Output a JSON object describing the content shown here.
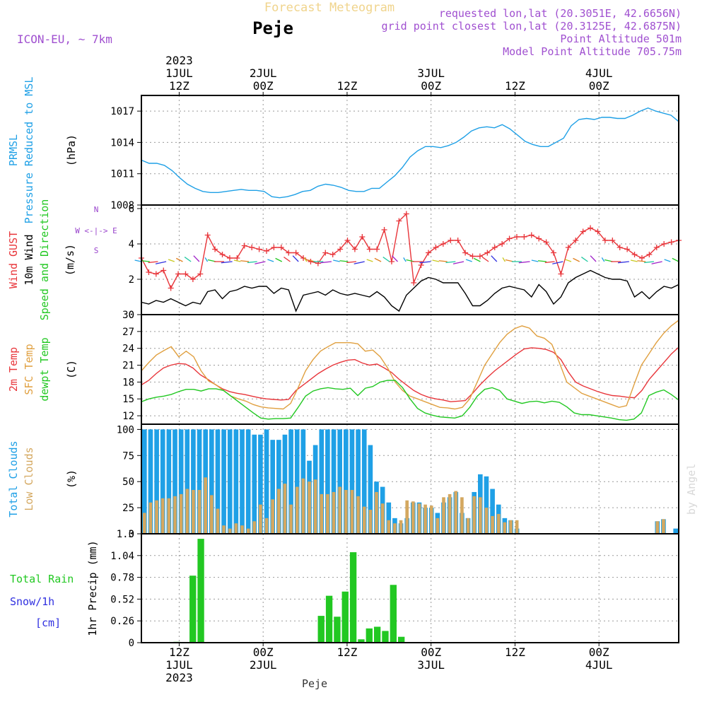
{
  "header": {
    "title": "Forecast Meteogram",
    "location": "Peje",
    "model": "ICON-EU, ~ 7km",
    "requested": "requested lon,lat (20.3051E, 42.6656N)",
    "grid_point": "grid point closest lon,lat (20.3125E, 42.6875N)",
    "point_altitude": "Point Altitude 501m",
    "model_altitude": "Model Point Altitude 705.75m",
    "footer_location": "Peje",
    "watermark": "by Angel"
  },
  "colors": {
    "pressure": "#1fa0e6",
    "gust": "#e8353a",
    "wind": "#000000",
    "temp2m": "#e8353a",
    "sfc": "#e0a040",
    "dewpt": "#22c822",
    "total_clouds": "#1fa0e6",
    "low_clouds": "#d4a860",
    "rain": "#22c822",
    "snow": "#3030e0",
    "compass": "#9944cc"
  },
  "time_axis": {
    "top_labels": [
      {
        "lines": [
          "2023",
          "1JUL",
          "12Z"
        ]
      },
      {
        "lines": [
          "2JUL",
          "00Z"
        ]
      },
      {
        "lines": [
          "12Z"
        ]
      },
      {
        "lines": [
          "3JUL",
          "00Z"
        ]
      },
      {
        "lines": [
          "12Z"
        ]
      },
      {
        "lines": [
          "4JUL",
          "00Z"
        ]
      }
    ],
    "bottom_labels": [
      {
        "lines": [
          "12Z",
          "1JUL",
          "2023"
        ]
      },
      {
        "lines": [
          "00Z",
          "2JUL"
        ]
      },
      {
        "lines": [
          "12Z"
        ]
      },
      {
        "lines": [
          "00Z",
          "3JUL"
        ]
      },
      {
        "lines": [
          "12Z"
        ]
      },
      {
        "lines": [
          "00Z",
          "4JUL"
        ]
      }
    ]
  },
  "panels": {
    "pressure": {
      "left_labels": [
        "PRMSL",
        "Pressure Reduced to MSL"
      ],
      "unit": "(hPa)"
    },
    "wind": {
      "left_labels": [
        "Wind GUST",
        "10m Wind",
        "Speed and Direction"
      ],
      "unit": "(m/s)",
      "compass": [
        "N",
        "W <-|-> E",
        "S"
      ]
    },
    "temp": {
      "left_labels": [
        "2m Temp",
        "SFC Temp",
        "dewpt Temp"
      ],
      "unit": "(C)"
    },
    "clouds": {
      "left_labels": [
        "Total Clouds",
        "Low Clouds"
      ],
      "unit": "(%)"
    },
    "precip": {
      "left_labels": [
        "Total  Rain",
        "Snow/1h",
        "[cm]"
      ],
      "unit": "1hr Precip (mm)"
    }
  },
  "chart_data": [
    {
      "type": "line",
      "name": "pressure",
      "x_range": [
        0,
        64
      ],
      "ylim": [
        1008,
        1018.5
      ],
      "yticks": [
        1008,
        1011,
        1014,
        1017
      ],
      "y_tick_labels": [
        "1008",
        "1011",
        "1014",
        "1017"
      ],
      "series": [
        {
          "values": [
            1012.3,
            1012.0,
            1012.0,
            1011.8,
            1011.3,
            1010.6,
            1010.0,
            1009.6,
            1009.3,
            1009.2,
            1009.2,
            1009.3,
            1009.4,
            1009.5,
            1009.4,
            1009.4,
            1009.3,
            1008.8,
            1008.7,
            1008.8,
            1009.0,
            1009.3,
            1009.4,
            1009.8,
            1010.0,
            1009.9,
            1009.7,
            1009.4,
            1009.3,
            1009.3,
            1009.6,
            1009.6,
            1010.2,
            1010.8,
            1011.6,
            1012.6,
            1013.2,
            1013.6,
            1013.6,
            1013.5,
            1013.7,
            1014.0,
            1014.5,
            1015.1,
            1015.4,
            1015.5,
            1015.4,
            1015.7,
            1015.3,
            1014.7,
            1014.1,
            1013.8,
            1013.6,
            1013.6,
            1014.0,
            1014.4,
            1015.6,
            1016.2,
            1016.3,
            1016.2,
            1016.4,
            1016.4,
            1016.3,
            1016.3,
            1016.6,
            1017.0,
            1017.3,
            1017.0,
            1016.8,
            1016.6,
            1016.0
          ]
        }
      ]
    },
    {
      "type": "line",
      "name": "wind",
      "x_range": [
        0,
        64
      ],
      "ylim": [
        0,
        6.2
      ],
      "yticks": [
        0,
        2,
        4,
        6
      ],
      "y_tick_labels": [
        "0",
        "2",
        "4",
        "6"
      ],
      "series": [
        {
          "name": "Wind GUST",
          "values": [
            3.2,
            2.4,
            2.3,
            2.5,
            1.5,
            2.3,
            2.3,
            2.0,
            2.3,
            4.5,
            3.7,
            3.4,
            3.2,
            3.2,
            3.9,
            3.8,
            3.7,
            3.6,
            3.8,
            3.8,
            3.5,
            3.5,
            3.2,
            3.0,
            2.9,
            3.5,
            3.4,
            3.7,
            4.2,
            3.7,
            4.4,
            3.7,
            3.7,
            4.8,
            3.0,
            5.3,
            5.7,
            1.8,
            2.8,
            3.5,
            3.8,
            4.0,
            4.2,
            4.2,
            3.5,
            3.3,
            3.3,
            3.5,
            3.8,
            4.0,
            4.3,
            4.4,
            4.4,
            4.5,
            4.3,
            4.1,
            3.5,
            2.3,
            3.8,
            4.2,
            4.7,
            4.9,
            4.7,
            4.2,
            4.2,
            3.8,
            3.7,
            3.4,
            3.2,
            3.4,
            3.8,
            4.0,
            4.1,
            4.2
          ]
        },
        {
          "name": "10m Wind",
          "values": [
            0.7,
            0.6,
            0.8,
            0.7,
            0.9,
            0.7,
            0.5,
            0.7,
            0.6,
            1.3,
            1.4,
            0.9,
            1.3,
            1.4,
            1.6,
            1.5,
            1.6,
            1.6,
            1.2,
            1.5,
            1.4,
            0.2,
            1.1,
            1.2,
            1.3,
            1.1,
            1.4,
            1.2,
            1.1,
            1.2,
            1.1,
            1.0,
            1.3,
            1.0,
            0.5,
            0.2,
            1.1,
            1.5,
            1.9,
            2.1,
            2.0,
            1.8,
            1.8,
            1.8,
            1.2,
            0.5,
            0.5,
            0.8,
            1.2,
            1.5,
            1.6,
            1.5,
            1.4,
            1.0,
            1.7,
            1.3,
            0.6,
            1.0,
            1.8,
            2.1,
            2.3,
            2.5,
            2.3,
            2.1,
            2.0,
            2.0,
            1.9,
            1.0,
            1.3,
            0.9,
            1.3,
            1.6,
            1.5,
            1.7
          ]
        }
      ],
      "wind_vector_y": 3.0
    },
    {
      "type": "line",
      "name": "temperature",
      "x_range": [
        0,
        64
      ],
      "ylim": [
        10.5,
        30
      ],
      "yticks": [
        12,
        15,
        18,
        21,
        24,
        27,
        30
      ],
      "y_tick_labels": [
        "12",
        "15",
        "18",
        "21",
        "24",
        "27",
        "30"
      ],
      "series": [
        {
          "name": "2m Temp",
          "values": [
            17.5,
            18.3,
            19.5,
            20.5,
            21.0,
            21.3,
            21.2,
            20.5,
            19.3,
            18.5,
            17.6,
            16.8,
            16.3,
            16.0,
            15.8,
            15.5,
            15.2,
            15.0,
            14.9,
            14.8,
            14.9,
            16.5,
            17.5,
            18.5,
            19.5,
            20.3,
            21.0,
            21.5,
            21.9,
            22.0,
            21.4,
            21.0,
            21.2,
            20.5,
            19.7,
            18.5,
            17.5,
            16.5,
            15.8,
            15.3,
            15.0,
            14.8,
            14.5,
            14.6,
            14.7,
            16.0,
            17.5,
            18.8,
            20.0,
            21.0,
            22.0,
            23.0,
            23.9,
            24.1,
            24.0,
            23.8,
            23.3,
            22.0,
            19.8,
            18.0,
            17.3,
            16.8,
            16.3,
            15.9,
            15.6,
            15.5,
            15.3,
            15.2,
            16.5,
            18.5,
            20.0,
            21.5,
            23.0,
            24.2
          ]
        },
        {
          "name": "SFC Temp",
          "values": [
            20.0,
            21.5,
            22.8,
            23.6,
            24.3,
            22.5,
            23.5,
            22.5,
            20.0,
            18.2,
            17.5,
            16.5,
            15.5,
            15.0,
            14.6,
            14.0,
            13.6,
            13.4,
            13.3,
            13.2,
            14.2,
            17.0,
            20.0,
            22.0,
            23.5,
            24.3,
            25.0,
            25.0,
            25.0,
            24.8,
            23.5,
            23.7,
            22.5,
            20.5,
            18.0,
            16.5,
            15.5,
            15.0,
            14.5,
            14.0,
            13.5,
            13.4,
            13.2,
            13.5,
            15.0,
            18.0,
            21.0,
            23.0,
            25.0,
            26.5,
            27.5,
            28.0,
            27.6,
            26.2,
            25.8,
            24.7,
            21.5,
            18.0,
            17.0,
            16.0,
            15.5,
            15.0,
            14.5,
            14.0,
            13.5,
            13.8,
            17.5,
            21.0,
            23.0,
            25.0,
            26.7,
            28.0,
            29.0
          ]
        },
        {
          "name": "dewpt Temp",
          "values": [
            14.5,
            15.0,
            15.3,
            15.5,
            15.8,
            16.3,
            16.7,
            16.7,
            16.4,
            16.8,
            16.8,
            16.5,
            15.5,
            14.5,
            13.5,
            12.5,
            11.6,
            11.4,
            11.5,
            11.5,
            11.6,
            13.5,
            15.5,
            16.4,
            16.8,
            17.0,
            16.8,
            16.7,
            16.9,
            15.6,
            16.9,
            17.2,
            18.0,
            18.3,
            18.3,
            17.0,
            15.0,
            13.3,
            12.5,
            12.1,
            11.8,
            11.7,
            11.6,
            12.0,
            13.5,
            15.5,
            16.7,
            17.0,
            16.5,
            15.0,
            14.6,
            14.2,
            14.5,
            14.6,
            14.3,
            14.6,
            14.4,
            13.6,
            12.5,
            12.2,
            12.2,
            12.0,
            11.8,
            11.6,
            11.3,
            11.2,
            11.4,
            12.5,
            15.6,
            16.2,
            16.6,
            15.8,
            14.8
          ]
        }
      ]
    },
    {
      "type": "bar",
      "name": "clouds",
      "x_range": [
        0,
        64
      ],
      "ylim": [
        0,
        105
      ],
      "yticks": [
        0,
        25,
        50,
        75,
        100
      ],
      "y_tick_labels": [
        "0",
        "25",
        "50",
        "75",
        "100"
      ],
      "series": [
        {
          "name": "Total Clouds",
          "values": [
            100,
            100,
            100,
            100,
            100,
            100,
            100,
            100,
            100,
            100,
            100,
            100,
            100,
            100,
            100,
            100,
            100,
            100,
            95,
            95,
            100,
            90,
            90,
            95,
            100,
            100,
            100,
            70,
            85,
            100,
            100,
            100,
            100,
            100,
            100,
            100,
            100,
            85,
            50,
            45,
            30,
            15,
            10,
            15,
            30,
            30,
            25,
            25,
            20,
            30,
            35,
            40,
            20,
            15,
            40,
            57,
            55,
            43,
            28,
            15,
            13,
            5,
            0,
            0,
            0,
            0,
            0,
            0,
            0,
            0,
            0,
            0,
            0,
            0,
            0,
            0,
            0,
            0,
            0,
            0,
            0,
            0,
            0,
            0,
            12,
            14,
            0,
            5
          ]
        },
        {
          "name": "Low Clouds",
          "values": [
            20,
            30,
            32,
            34,
            34,
            36,
            38,
            43,
            42,
            42,
            54,
            37,
            24,
            8,
            5,
            10,
            8,
            5,
            12,
            28,
            15,
            33,
            43,
            48,
            28,
            45,
            53,
            50,
            52,
            38,
            38,
            40,
            45,
            42,
            42,
            36,
            26,
            23,
            40,
            29,
            13,
            10,
            13,
            32,
            31,
            29,
            28,
            27,
            15,
            35,
            38,
            41,
            35,
            15,
            36,
            35,
            25,
            17,
            19,
            11,
            13,
            13,
            0,
            0,
            0,
            0,
            0,
            0,
            0,
            0,
            0,
            0,
            0,
            0,
            0,
            0,
            0,
            0,
            0,
            0,
            0,
            0,
            0,
            0,
            12,
            14,
            0,
            0
          ]
        }
      ]
    },
    {
      "type": "bar",
      "name": "precipitation",
      "x_range": [
        0,
        64
      ],
      "ylim": [
        0,
        1.3
      ],
      "yticks": [
        0,
        0.26,
        0.52,
        0.78,
        1.04,
        1.3
      ],
      "y_tick_labels": [
        "0",
        "0.26",
        "0.52",
        "0.78",
        "1.04",
        "1.3"
      ],
      "series": [
        {
          "name": "Total Rain",
          "x": [
            4,
            6,
            7,
            21,
            22,
            23,
            24,
            25,
            26,
            27,
            28,
            29,
            30,
            31,
            32,
            33
          ],
          "values": [
            0.01,
            0.8,
            1.24,
            0.01,
            0.32,
            0.56,
            0.31,
            0.61,
            1.08,
            0.04,
            0.17,
            0.19,
            0.14,
            0.69,
            0.07,
            0.0
          ]
        },
        {
          "name": "Snow/1h",
          "x": [],
          "values": []
        }
      ]
    }
  ]
}
